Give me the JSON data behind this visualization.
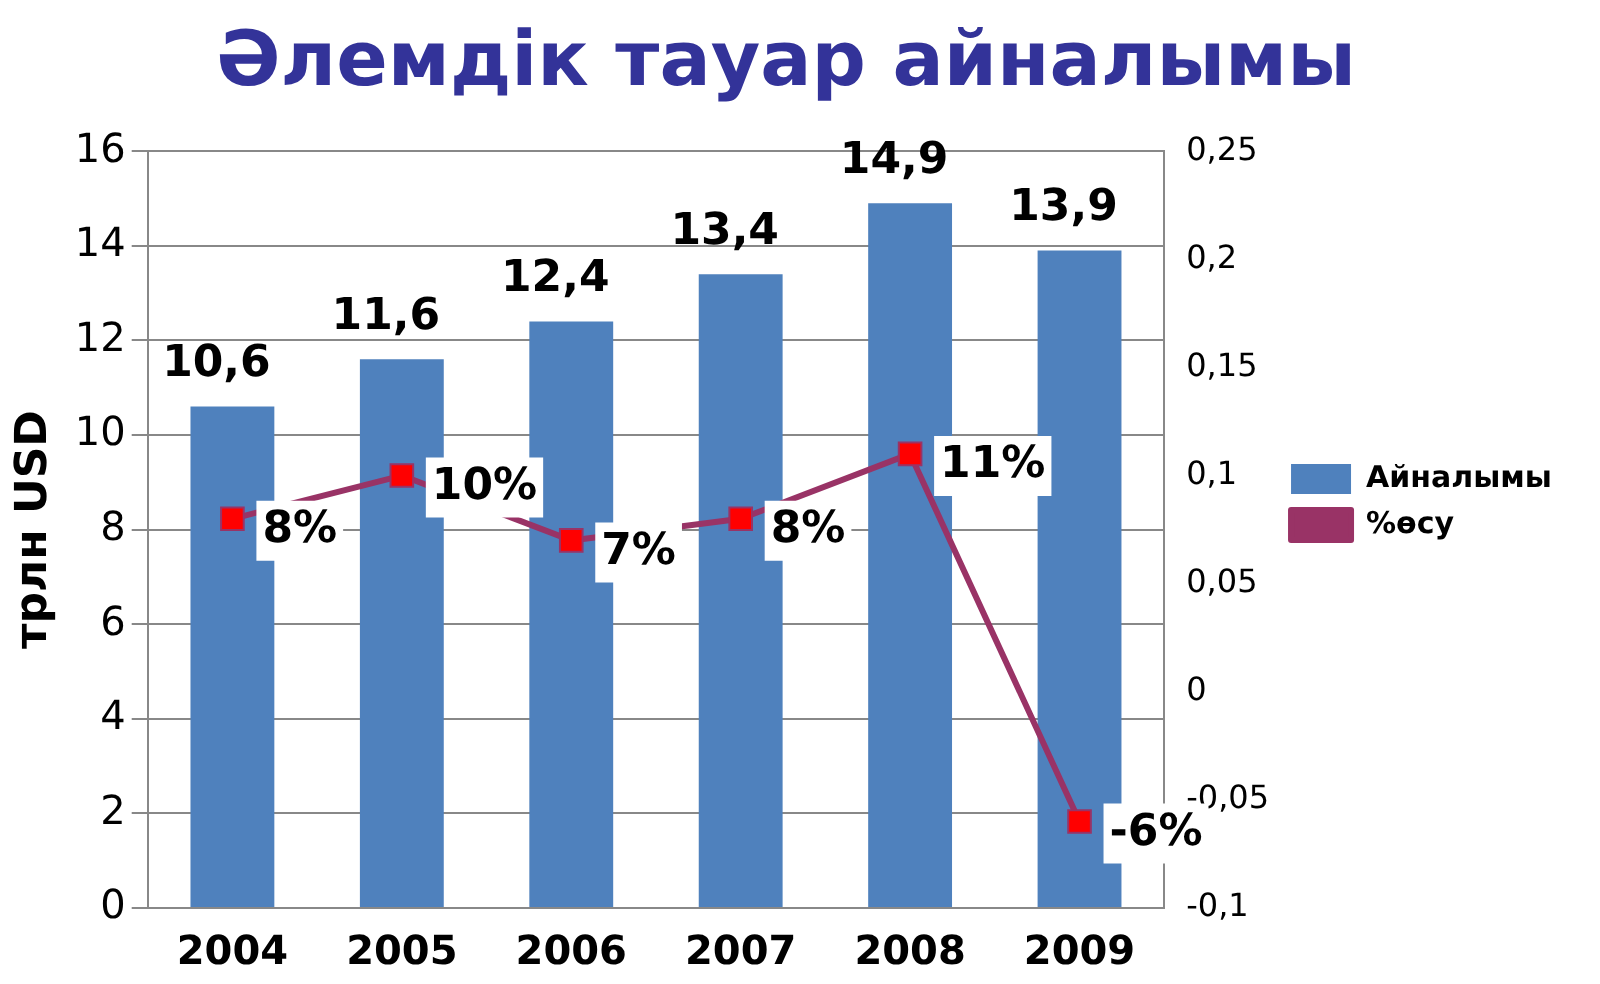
{
  "chart_data": {
    "type": "bar",
    "title": "Әлемдік тауар айналымы",
    "ylabel": "трлн USD",
    "categories": [
      "2004",
      "2005",
      "2006",
      "2007",
      "2008",
      "2009"
    ],
    "series": [
      {
        "name": "Айналымы",
        "color": "#4f81bd",
        "values": [
          10.6,
          11.6,
          12.4,
          13.4,
          14.9,
          13.9
        ],
        "value_labels": [
          "10,6",
          "11,6",
          "12,4",
          "13,4",
          "14,9",
          "13,9"
        ]
      },
      {
        "name": "%өсу",
        "type": "line",
        "axis": "y2",
        "color": "#993366",
        "marker": "square",
        "values": [
          0.08,
          0.1,
          0.07,
          0.08,
          0.11,
          -0.06
        ],
        "value_labels": [
          "8%",
          "10%",
          "7%",
          "8%",
          "11%",
          "-6%"
        ]
      }
    ],
    "ylim": [
      0,
      16
    ],
    "yticks": [
      0,
      2,
      4,
      6,
      8,
      10,
      12,
      14,
      16
    ],
    "y2lim": [
      -0.1,
      0.25
    ],
    "y2ticks": [
      {
        "value": -0.1,
        "label": "-0,1"
      },
      {
        "value": -0.05,
        "label": "-0,05"
      },
      {
        "value": 0,
        "label": "0"
      },
      {
        "value": 0.05,
        "label": "0,05"
      },
      {
        "value": 0.1,
        "label": "0,1"
      },
      {
        "value": 0.15,
        "label": "0,15"
      },
      {
        "value": 0.2,
        "label": "0,2"
      },
      {
        "value": 0.25,
        "label": "0,25"
      }
    ],
    "grid": "y",
    "legend": "right"
  }
}
